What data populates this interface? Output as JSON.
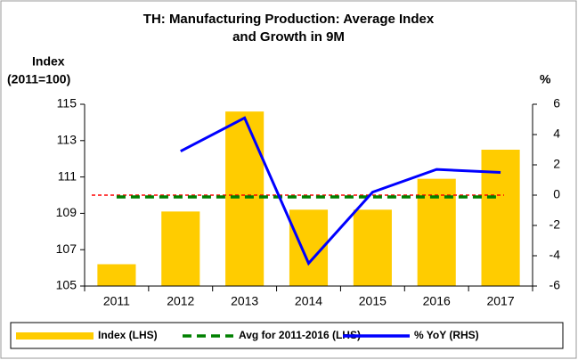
{
  "chart_data": {
    "type": "bar",
    "title": [
      "TH: Manufacturing Production: Average Index",
      "and Growth in 9M"
    ],
    "y_label": [
      "Index",
      "(2011=100)"
    ],
    "y2_label": "%",
    "categories": [
      "2011",
      "2012",
      "2013",
      "2014",
      "2015",
      "2016",
      "2017"
    ],
    "series": [
      {
        "name": "Index (LHS)",
        "type": "bar",
        "color": "#ffcc00",
        "values": [
          106.2,
          109.1,
          114.6,
          109.2,
          109.2,
          110.9,
          112.5
        ]
      },
      {
        "name": "Avg for 2011-2016 (LHS)",
        "type": "dashed-line",
        "color": "#008000",
        "values": [
          109.9,
          109.9,
          109.9,
          109.9,
          109.9,
          109.9,
          109.9
        ]
      },
      {
        "name": "% YoY (RHS)",
        "type": "line",
        "axis": "y2",
        "color": "#0000ff",
        "values": [
          null,
          2.9,
          5.1,
          -4.5,
          0.2,
          1.7,
          1.5
        ]
      }
    ],
    "ylim": [
      105,
      115
    ],
    "yticks": [
      105,
      107,
      109,
      111,
      113,
      115
    ],
    "y2lim": [
      -6,
      6
    ],
    "y2ticks": [
      -6,
      -4,
      -2,
      0,
      2,
      4,
      6
    ],
    "zero_line_color": "#ff0000",
    "legend": "bottom"
  }
}
